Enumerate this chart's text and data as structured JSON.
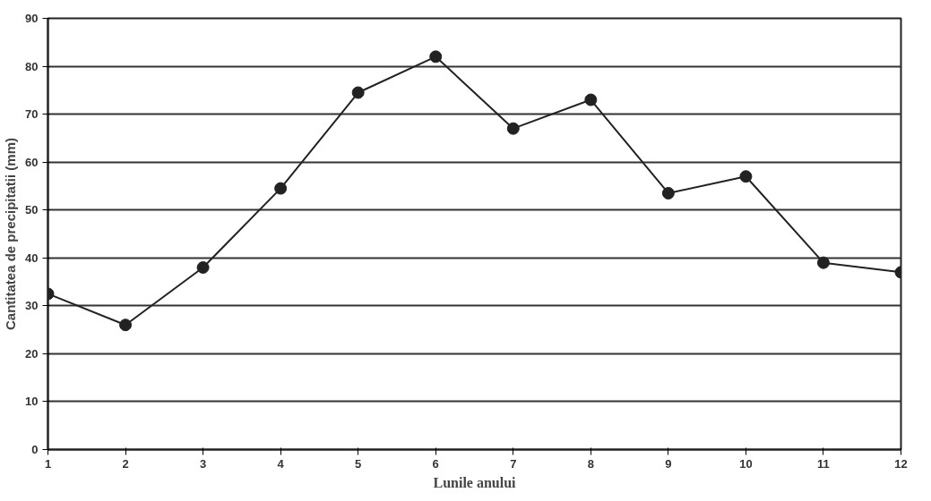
{
  "chart_data": {
    "type": "line",
    "xlabel": "Lunile anului",
    "ylabel": "Cantitatea de precipitatii (mm)",
    "x": [
      1,
      2,
      3,
      4,
      5,
      6,
      7,
      8,
      9,
      10,
      11,
      12
    ],
    "series": [
      {
        "color": "#222222",
        "values": [
          32.5,
          26,
          38,
          54.5,
          74.5,
          82,
          67,
          73,
          53.5,
          57,
          39,
          37
        ]
      }
    ],
    "xlim": [
      1,
      12
    ],
    "xticks": [
      1,
      2,
      3,
      4,
      5,
      6,
      7,
      8,
      9,
      10,
      11,
      12
    ],
    "ylim": [
      0,
      90
    ],
    "yticks": [
      0,
      10,
      20,
      30,
      40,
      50,
      60,
      70,
      80,
      90
    ],
    "grid": "y",
    "marker": "circle",
    "line_style": "solid"
  }
}
